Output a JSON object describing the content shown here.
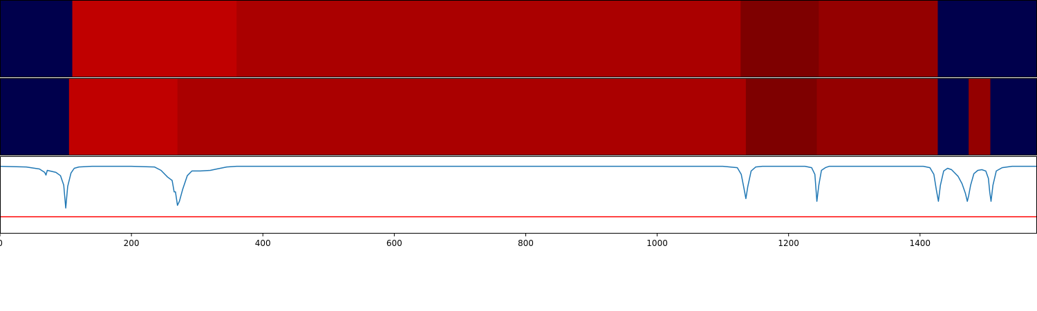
{
  "chart_data": {
    "type": "heatmap",
    "x_range": [
      0,
      1578
    ],
    "x_ticks": [
      0,
      200,
      400,
      600,
      800,
      1000,
      1200,
      1400
    ],
    "rows": [
      {
        "segments": [
          {
            "start": 0,
            "end": 110,
            "color": "#00004c"
          },
          {
            "start": 110,
            "end": 360,
            "color": "#c00000"
          },
          {
            "start": 360,
            "end": 1127,
            "color": "#aa0000"
          },
          {
            "start": 1127,
            "end": 1246,
            "color": "#7e0000"
          },
          {
            "start": 1246,
            "end": 1427,
            "color": "#940000"
          },
          {
            "start": 1427,
            "end": 1578,
            "color": "#00004c"
          }
        ]
      },
      {
        "segments": [
          {
            "start": 0,
            "end": 105,
            "color": "#00004c"
          },
          {
            "start": 105,
            "end": 270,
            "color": "#c00000"
          },
          {
            "start": 270,
            "end": 1135,
            "color": "#aa0000"
          },
          {
            "start": 1135,
            "end": 1243,
            "color": "#7e0000"
          },
          {
            "start": 1243,
            "end": 1427,
            "color": "#940000"
          },
          {
            "start": 1427,
            "end": 1474,
            "color": "#00004c"
          },
          {
            "start": 1474,
            "end": 1507,
            "color": "#940000"
          },
          {
            "start": 1507,
            "end": 1578,
            "color": "#00004c"
          }
        ]
      }
    ],
    "line_panel": {
      "y_range": [
        -1.0,
        0.15
      ],
      "threshold": -0.75,
      "threshold_color": "#ff0000",
      "line_color": "#1f77b4",
      "series": {
        "x": [
          0,
          40,
          60,
          68,
          70,
          72,
          76,
          85,
          92,
          97,
          100,
          103,
          108,
          113,
          120,
          140,
          200,
          235,
          245,
          255,
          262,
          265,
          267,
          270,
          273,
          278,
          285,
          292,
          305,
          320,
          330,
          345,
          360,
          400,
          1100,
          1122,
          1128,
          1132,
          1135,
          1138,
          1143,
          1150,
          1160,
          1225,
          1235,
          1240,
          1243,
          1246,
          1250,
          1256,
          1262,
          1405,
          1415,
          1421,
          1425,
          1428,
          1431,
          1436,
          1442,
          1448,
          1452,
          1458,
          1464,
          1469,
          1472,
          1474,
          1477,
          1482,
          1488,
          1494,
          1500,
          1504,
          1506,
          1508,
          1511,
          1516,
          1525,
          1540,
          1578
        ],
        "y": [
          0.0,
          -0.01,
          -0.04,
          -0.09,
          -0.13,
          -0.06,
          -0.07,
          -0.09,
          -0.14,
          -0.28,
          -0.62,
          -0.3,
          -0.1,
          -0.03,
          -0.01,
          0.0,
          0.0,
          -0.01,
          -0.06,
          -0.16,
          -0.21,
          -0.38,
          -0.38,
          -0.58,
          -0.52,
          -0.34,
          -0.14,
          -0.07,
          -0.07,
          -0.06,
          -0.04,
          -0.01,
          0.0,
          0.0,
          0.0,
          -0.02,
          -0.12,
          -0.32,
          -0.48,
          -0.3,
          -0.07,
          -0.01,
          0.0,
          0.0,
          -0.02,
          -0.12,
          -0.52,
          -0.28,
          -0.06,
          -0.02,
          0.0,
          0.0,
          -0.02,
          -0.12,
          -0.36,
          -0.52,
          -0.28,
          -0.07,
          -0.03,
          -0.05,
          -0.09,
          -0.15,
          -0.26,
          -0.4,
          -0.52,
          -0.44,
          -0.28,
          -0.11,
          -0.06,
          -0.05,
          -0.07,
          -0.18,
          -0.38,
          -0.52,
          -0.28,
          -0.07,
          -0.02,
          0.0,
          0.0
        ]
      }
    }
  }
}
